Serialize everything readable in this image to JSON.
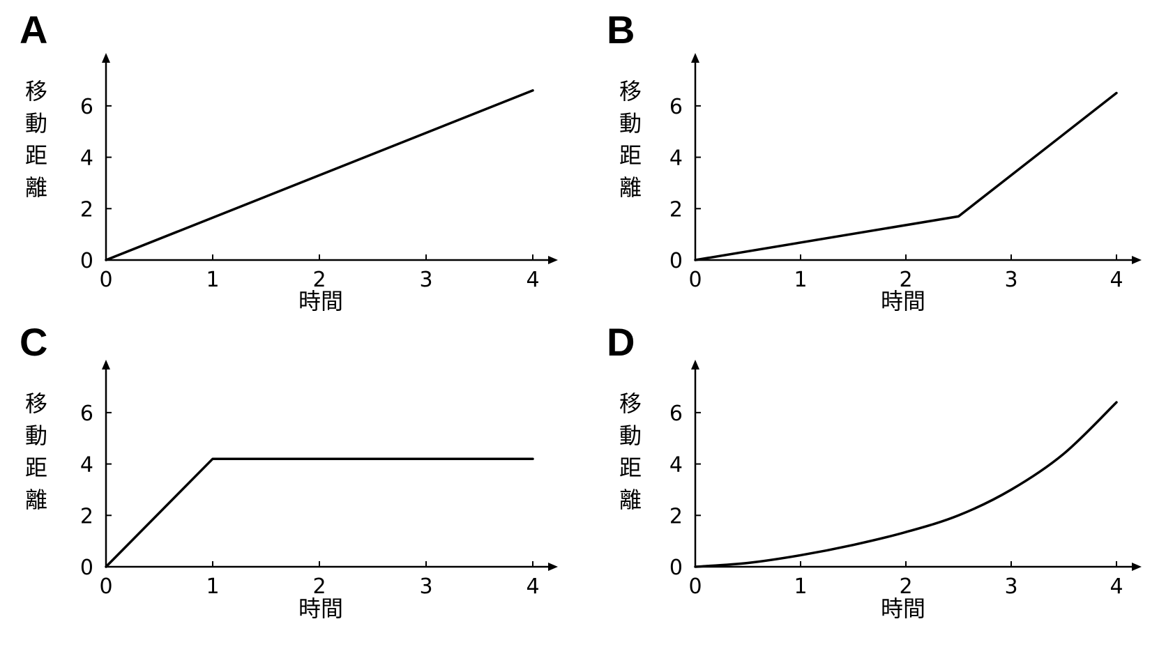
{
  "chart_data": [
    {
      "type": "line",
      "panel_label": "A",
      "xlabel": "時間",
      "ylabel": "移動距離",
      "xlim": [
        0,
        4
      ],
      "ylim": [
        0,
        7
      ],
      "x_ticks": [
        0,
        1,
        2,
        3,
        4
      ],
      "y_ticks": [
        0,
        2,
        4,
        6
      ],
      "grid": false,
      "series": [
        {
          "x": [
            0,
            4
          ],
          "y": [
            0,
            6.6
          ]
        }
      ]
    },
    {
      "type": "line",
      "panel_label": "B",
      "xlabel": "時間",
      "ylabel": "移動距離",
      "xlim": [
        0,
        4
      ],
      "ylim": [
        0,
        7
      ],
      "x_ticks": [
        0,
        1,
        2,
        3,
        4
      ],
      "y_ticks": [
        0,
        2,
        4,
        6
      ],
      "grid": false,
      "series": [
        {
          "x": [
            0,
            2.5,
            4
          ],
          "y": [
            0,
            1.7,
            6.5
          ]
        }
      ]
    },
    {
      "type": "line",
      "panel_label": "C",
      "xlabel": "時間",
      "ylabel": "移動距離",
      "xlim": [
        0,
        4
      ],
      "ylim": [
        0,
        7
      ],
      "x_ticks": [
        0,
        1,
        2,
        3,
        4
      ],
      "y_ticks": [
        0,
        2,
        4,
        6
      ],
      "grid": false,
      "series": [
        {
          "x": [
            0,
            1,
            4
          ],
          "y": [
            0,
            4.2,
            4.2
          ]
        }
      ]
    },
    {
      "type": "line",
      "panel_label": "D",
      "xlabel": "時間",
      "ylabel": "移動距離",
      "xlim": [
        0,
        4
      ],
      "ylim": [
        0,
        7
      ],
      "x_ticks": [
        0,
        1,
        2,
        3,
        4
      ],
      "y_ticks": [
        0,
        2,
        4,
        6
      ],
      "grid": false,
      "series": [
        {
          "x": [
            0,
            0.5,
            1,
            1.5,
            2,
            2.5,
            3,
            3.5,
            4
          ],
          "y": [
            0,
            0.15,
            0.45,
            0.85,
            1.35,
            2.0,
            3.0,
            4.4,
            6.4
          ]
        }
      ]
    }
  ]
}
